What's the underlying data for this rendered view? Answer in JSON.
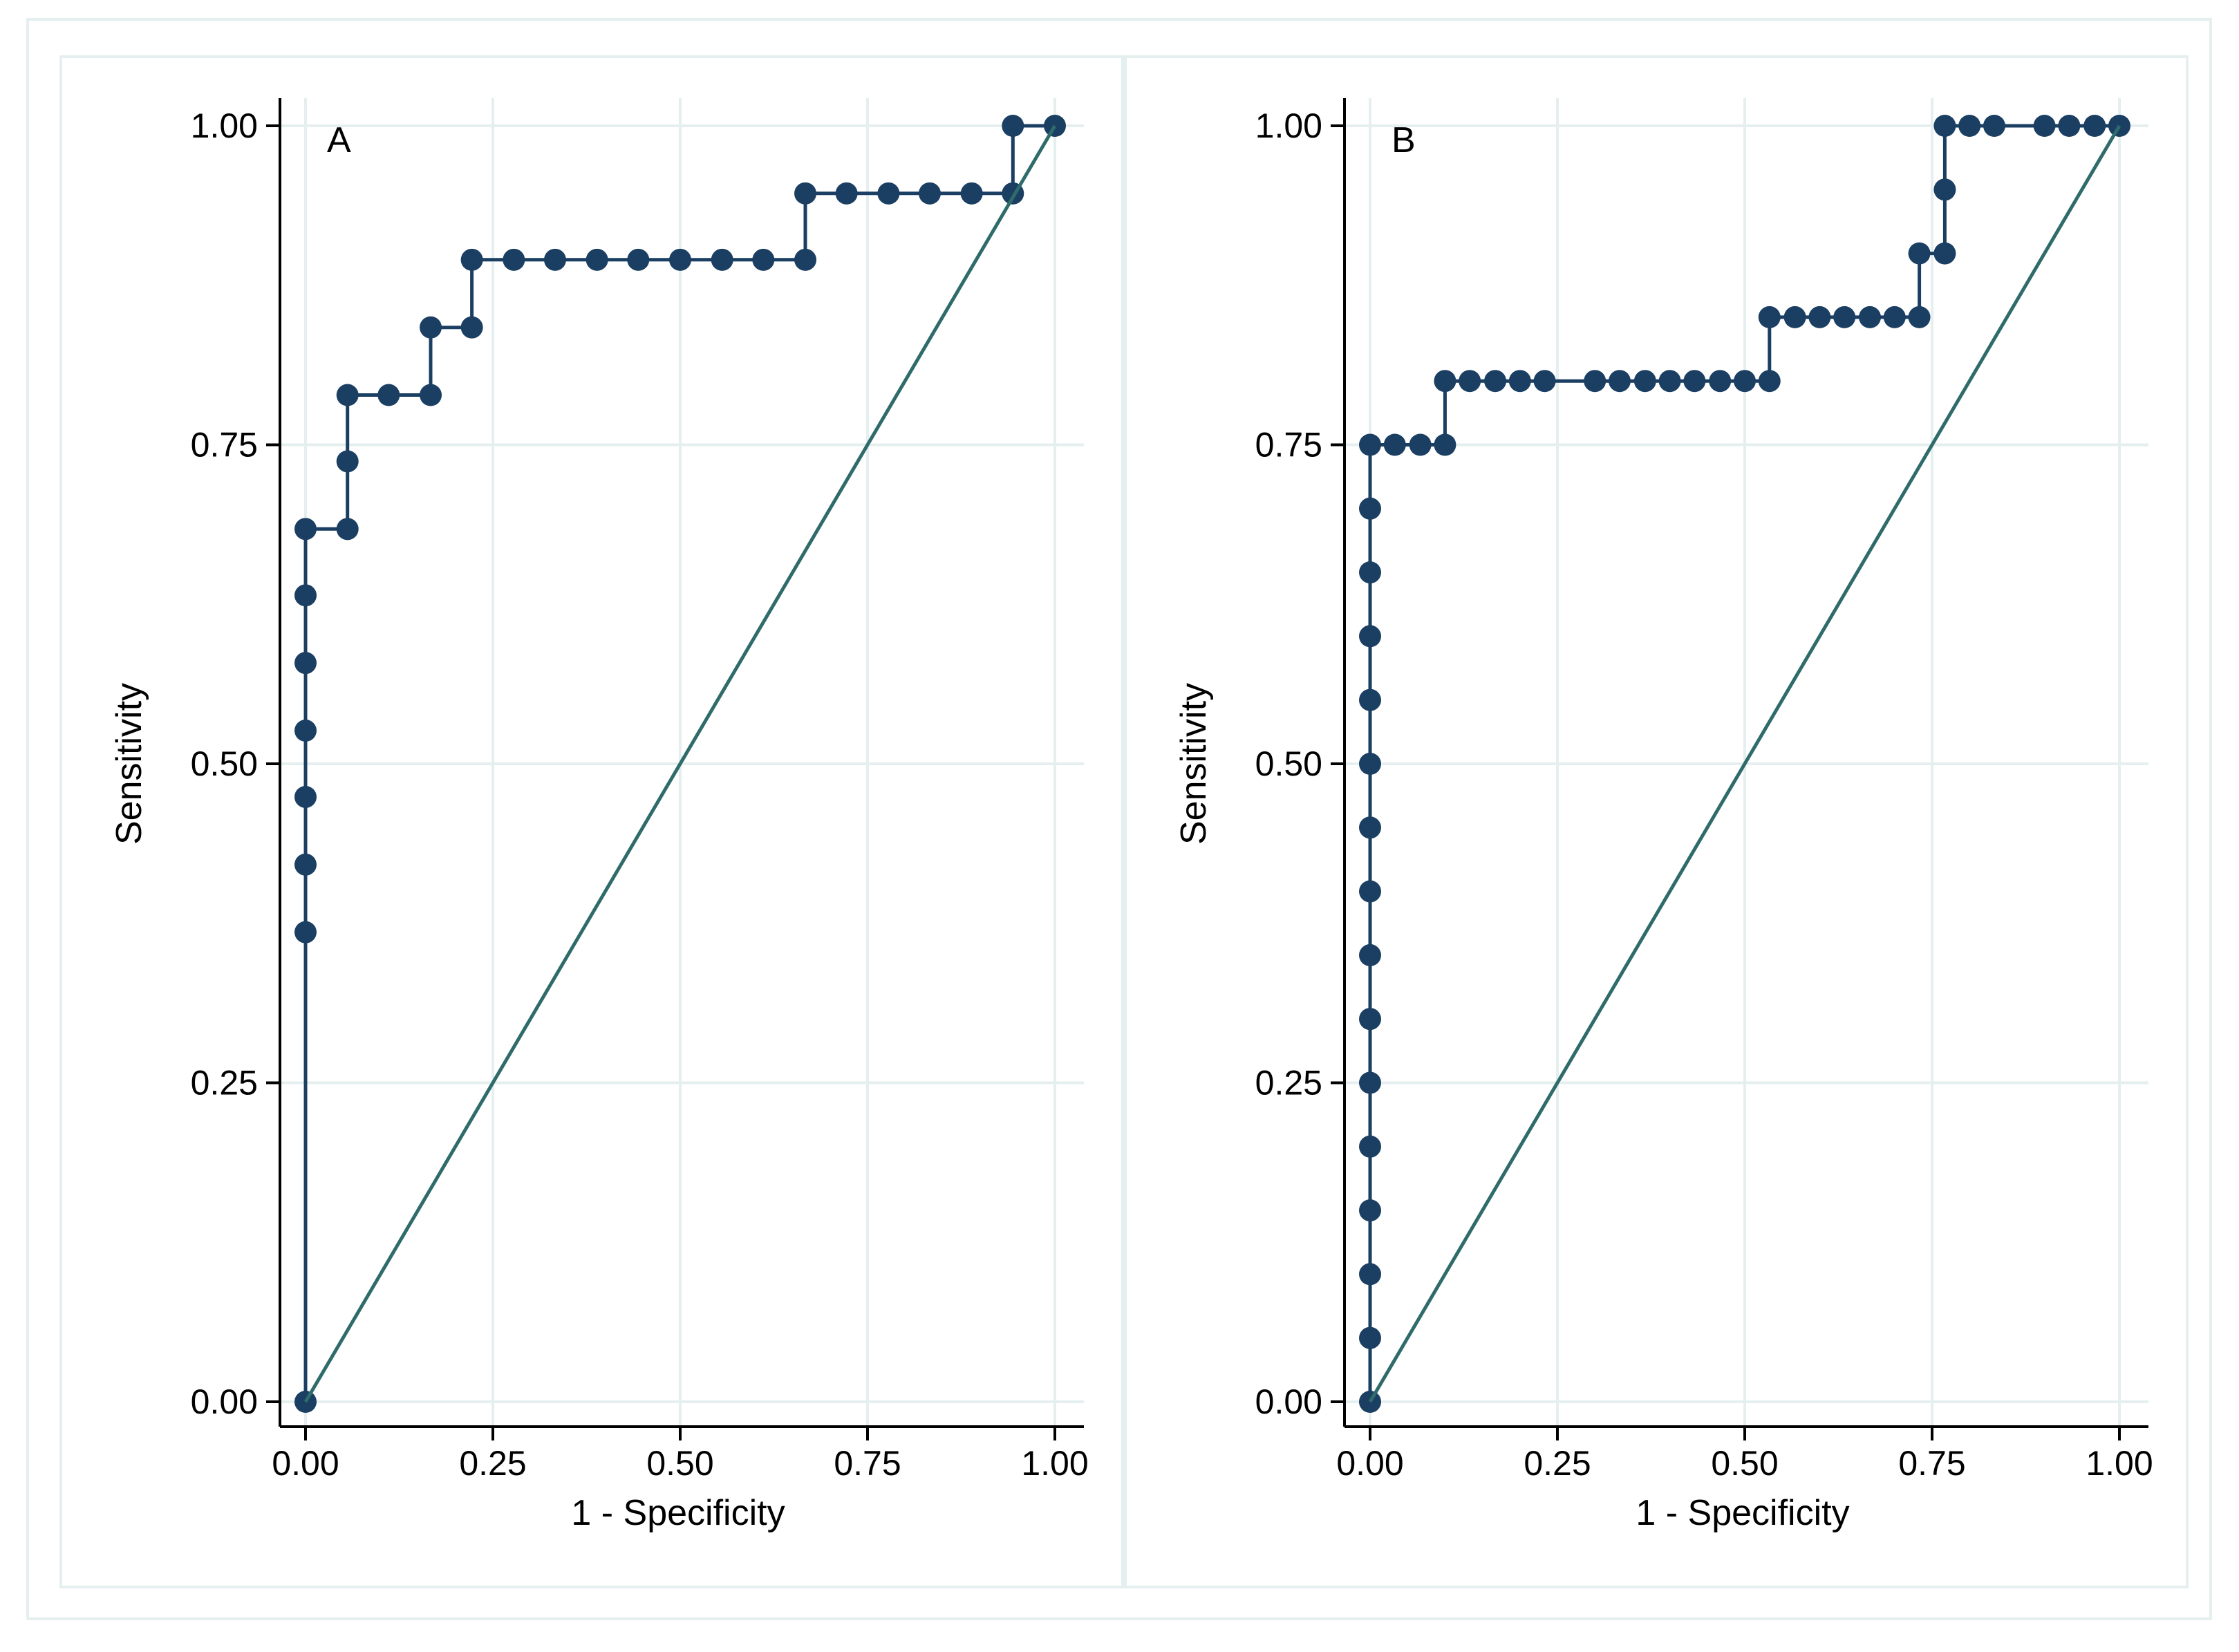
{
  "chart_data": [
    {
      "type": "line",
      "panel_label": "A",
      "xlabel": "1 - Specificity",
      "ylabel": "Sensitivity",
      "xlim": [
        0,
        1
      ],
      "ylim": [
        0,
        1
      ],
      "grid": true,
      "x_ticks": [
        "0.00",
        "0.25",
        "0.50",
        "0.75",
        "1.00"
      ],
      "y_ticks": [
        "0.00",
        "0.25",
        "0.50",
        "0.75",
        "1.00"
      ],
      "series": [
        {
          "name": "ROC curve",
          "kind": "step",
          "x": [
            0,
            0,
            0,
            0,
            0,
            0,
            0,
            0,
            0.056,
            0.056,
            0.056,
            0.111,
            0.167,
            0.167,
            0.222,
            0.222,
            0.278,
            0.333,
            0.389,
            0.444,
            0.5,
            0.556,
            0.611,
            0.667,
            0.667,
            0.722,
            0.778,
            0.833,
            0.889,
            0.944,
            0.944,
            1.0
          ],
          "y": [
            0,
            0.368,
            0.421,
            0.474,
            0.526,
            0.579,
            0.632,
            0.684,
            0.684,
            0.737,
            0.789,
            0.789,
            0.789,
            0.842,
            0.842,
            0.895,
            0.895,
            0.895,
            0.895,
            0.895,
            0.895,
            0.895,
            0.895,
            0.895,
            0.947,
            0.947,
            0.947,
            0.947,
            0.947,
            0.947,
            1.0,
            1.0
          ]
        },
        {
          "name": "Reference line",
          "kind": "line",
          "x": [
            0,
            1
          ],
          "y": [
            0,
            1
          ]
        }
      ]
    },
    {
      "type": "line",
      "panel_label": "B",
      "xlabel": "1 - Specificity",
      "ylabel": "Sensitivity",
      "xlim": [
        0,
        1
      ],
      "ylim": [
        0,
        1
      ],
      "grid": true,
      "x_ticks": [
        "0.00",
        "0.25",
        "0.50",
        "0.75",
        "1.00"
      ],
      "y_ticks": [
        "0.00",
        "0.25",
        "0.50",
        "0.75",
        "1.00"
      ],
      "series": [
        {
          "name": "ROC curve",
          "kind": "step",
          "x": [
            0,
            0,
            0,
            0,
            0,
            0,
            0,
            0,
            0,
            0,
            0,
            0,
            0,
            0,
            0,
            0,
            0.033,
            0.067,
            0.1,
            0.1,
            0.133,
            0.167,
            0.2,
            0.233,
            0.3,
            0.333,
            0.367,
            0.4,
            0.433,
            0.467,
            0.5,
            0.533,
            0.533,
            0.567,
            0.6,
            0.633,
            0.667,
            0.7,
            0.733,
            0.733,
            0.767,
            0.767,
            0.767,
            0.8,
            0.833,
            0.9,
            0.933,
            0.967,
            1.0
          ],
          "y": [
            0,
            0.05,
            0.1,
            0.15,
            0.2,
            0.25,
            0.3,
            0.35,
            0.4,
            0.45,
            0.5,
            0.55,
            0.6,
            0.65,
            0.7,
            0.75,
            0.75,
            0.75,
            0.75,
            0.8,
            0.8,
            0.8,
            0.8,
            0.8,
            0.8,
            0.8,
            0.8,
            0.8,
            0.8,
            0.8,
            0.8,
            0.8,
            0.85,
            0.85,
            0.85,
            0.85,
            0.85,
            0.85,
            0.85,
            0.9,
            0.9,
            0.95,
            1.0,
            1.0,
            1.0,
            1.0,
            1.0,
            1.0,
            1.0
          ]
        },
        {
          "name": "Reference line",
          "kind": "line",
          "x": [
            0,
            1
          ],
          "y": [
            0,
            1
          ]
        }
      ]
    }
  ],
  "colors": {
    "curve": "#1b3f62",
    "reference": "#2f6b6b",
    "grid": "#e5efef",
    "axis": "#000000"
  }
}
